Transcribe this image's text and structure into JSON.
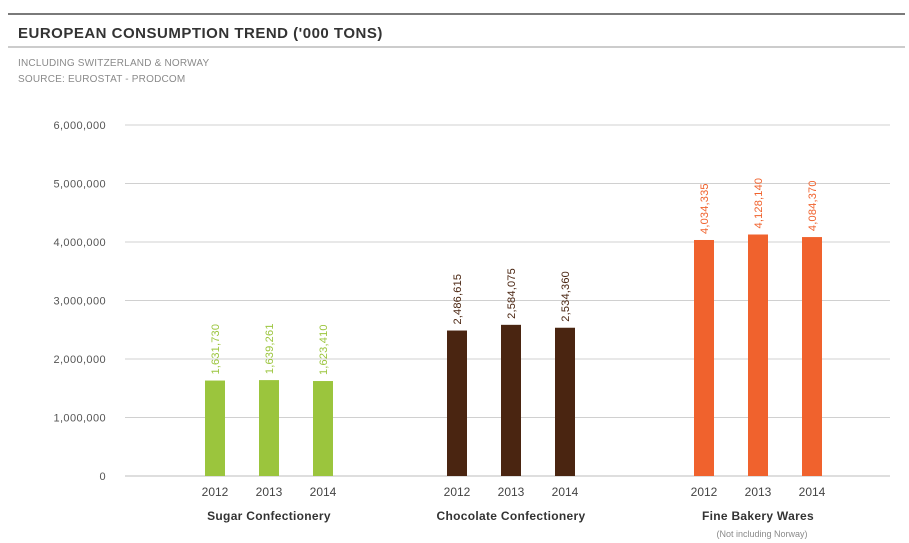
{
  "header": {
    "title": "EUROPEAN CONSUMPTION TREND ('000 TONS)",
    "subtitle_lines": [
      "INCLUDING SWITZERLAND & NORWAY",
      "SOURCE: EUROSTAT - PRODCOM"
    ]
  },
  "chart_data": {
    "type": "bar",
    "title": "EUROPEAN CONSUMPTION TREND ('000 TONS)",
    "xlabel": "",
    "ylabel": "",
    "ylim": [
      0,
      6000000
    ],
    "yticks": [
      0,
      1000000,
      2000000,
      3000000,
      4000000,
      5000000,
      6000000
    ],
    "ytick_labels": [
      "0",
      "1,000,000",
      "2,000,000",
      "3,000,000",
      "4,000,000",
      "5,000,000",
      "6,000,000"
    ],
    "grid": true,
    "legend": "none",
    "groups": [
      {
        "name": "Sugar Confectionery",
        "note": "",
        "color": "#9bc53d",
        "categories": [
          "2012",
          "2013",
          "2014"
        ],
        "values": [
          1631730,
          1639261,
          1623410
        ],
        "labels": [
          "1,631,730",
          "1,639,261",
          "1,623,410"
        ]
      },
      {
        "name": "Chocolate Confectionery",
        "note": "",
        "color": "#4a2511",
        "categories": [
          "2012",
          "2013",
          "2014"
        ],
        "values": [
          2486615,
          2584075,
          2534360
        ],
        "labels": [
          "2,486,615",
          "2,584,075",
          "2,534,360"
        ]
      },
      {
        "name": "Fine Bakery Wares",
        "note": "(Not including Norway)",
        "color": "#f0622d",
        "categories": [
          "2012",
          "2013",
          "2014"
        ],
        "values": [
          4034335,
          4128140,
          4084370
        ],
        "labels": [
          "4,034,335",
          "4,128,140",
          "4,084,370"
        ]
      }
    ]
  }
}
